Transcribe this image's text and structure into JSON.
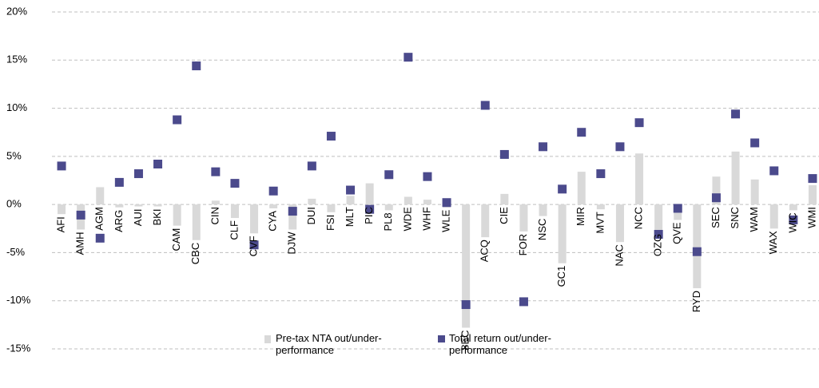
{
  "chart_data": {
    "type": "bar",
    "categories": [
      "AFI",
      "AMH",
      "AGM",
      "ARG",
      "AUI",
      "BKI",
      "CAM",
      "CBC",
      "CIN",
      "CLF",
      "CVF",
      "CYA",
      "DJW",
      "DUI",
      "FSI",
      "MLT",
      "PIC",
      "PL8",
      "WDE",
      "WHF",
      "WLE",
      "8EC",
      "ACQ",
      "CIE",
      "FOR",
      "NSC",
      "GC1",
      "MIR",
      "MVT",
      "NAC",
      "NCC",
      "OZG",
      "QVE",
      "RYD",
      "SEC",
      "SNC",
      "WAM",
      "WAX",
      "WIC",
      "WMI"
    ],
    "series": [
      {
        "name": "Pre-tax NTA out/under-performance",
        "type": "bar",
        "color": "#d9d9d9",
        "values": [
          -1.0,
          -2.6,
          1.8,
          -0.3,
          -0.2,
          -0.2,
          -2.2,
          -3.7,
          0.4,
          -1.4,
          -3.0,
          -0.4,
          -2.6,
          0.6,
          -0.8,
          0.9,
          2.2,
          -0.6,
          0.8,
          0.5,
          -0.3,
          -12.8,
          -3.4,
          1.1,
          -2.8,
          -1.2,
          -6.1,
          3.4,
          -0.5,
          -3.9,
          5.3,
          -2.8,
          -1.6,
          -8.7,
          2.9,
          5.5,
          2.6,
          -2.5,
          -0.6,
          2.0
        ]
      },
      {
        "name": "Total return out/under-performance",
        "type": "scatter",
        "color": "#4b4a8c",
        "values": [
          4.0,
          -1.1,
          -3.5,
          2.3,
          3.2,
          4.2,
          8.8,
          14.4,
          3.4,
          2.2,
          -4.2,
          1.4,
          -0.7,
          4.0,
          7.1,
          1.5,
          -0.5,
          3.1,
          15.3,
          2.9,
          0.2,
          -10.4,
          10.3,
          5.2,
          -10.1,
          6.0,
          1.6,
          7.5,
          3.2,
          6.0,
          8.5,
          -3.1,
          -0.4,
          -4.9,
          0.7,
          9.4,
          6.4,
          3.5,
          -1.6,
          2.7
        ]
      }
    ],
    "ylim": [
      -15,
      20
    ],
    "yticks": [
      {
        "value": -15,
        "label": "-15%"
      },
      {
        "value": -10,
        "label": "-10%"
      },
      {
        "value": -5,
        "label": "-5%"
      },
      {
        "value": 0,
        "label": "0%"
      },
      {
        "value": 5,
        "label": "5%"
      },
      {
        "value": 10,
        "label": "10%"
      },
      {
        "value": 15,
        "label": "15%"
      },
      {
        "value": 20,
        "label": "20%"
      }
    ],
    "grid": true
  }
}
